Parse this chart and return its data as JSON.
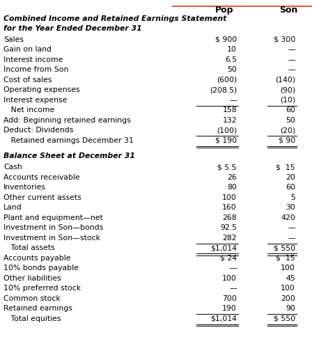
{
  "header_line_color": "#d2603a",
  "col_headers_pop": "Pop",
  "col_headers_son": "Son",
  "section1_title_line1": "Combined Income and Retained Earnings Statement",
  "section1_title_line2": "for the Year Ended December 31",
  "section2_title": "Balance Sheet at December 31",
  "rows": [
    {
      "label": "Sales",
      "pop": "$ 900",
      "son": "$ 300",
      "indent": false,
      "ul_pop": false,
      "ul_son": false,
      "dul_pop": false,
      "dul_son": false
    },
    {
      "label": "Gain on land",
      "pop": "10",
      "son": "—",
      "indent": false,
      "ul_pop": false,
      "ul_son": false,
      "dul_pop": false,
      "dul_son": false
    },
    {
      "label": "Interest income",
      "pop": "6.5",
      "son": "—",
      "indent": false,
      "ul_pop": false,
      "ul_son": false,
      "dul_pop": false,
      "dul_son": false
    },
    {
      "label": "Income from Son",
      "pop": "50",
      "son": "—",
      "indent": false,
      "ul_pop": false,
      "ul_son": false,
      "dul_pop": false,
      "dul_son": false
    },
    {
      "label": "Cost of sales",
      "pop": "(600)",
      "son": "(140)",
      "indent": false,
      "ul_pop": false,
      "ul_son": false,
      "dul_pop": false,
      "dul_son": false
    },
    {
      "label": "Operating expenses",
      "pop": "(208.5)",
      "son": "(90)",
      "indent": false,
      "ul_pop": false,
      "ul_son": false,
      "dul_pop": false,
      "dul_son": false
    },
    {
      "label": "Interest expense",
      "pop": "—",
      "son": "(10)",
      "indent": false,
      "ul_pop": true,
      "ul_son": true,
      "dul_pop": false,
      "dul_son": false
    },
    {
      "label": "   Net income",
      "pop": "158",
      "son": "60",
      "indent": true,
      "ul_pop": false,
      "ul_son": false,
      "dul_pop": false,
      "dul_son": false
    },
    {
      "label": "Add: Beginning retained earnings",
      "pop": "132",
      "son": "50",
      "indent": false,
      "ul_pop": false,
      "ul_son": false,
      "dul_pop": false,
      "dul_son": false
    },
    {
      "label": "Deduct: Dividends",
      "pop": "(100)",
      "son": "(20)",
      "indent": false,
      "ul_pop": true,
      "ul_son": true,
      "dul_pop": false,
      "dul_son": false
    },
    {
      "label": "   Retained earnings December 31",
      "pop": "$ 190",
      "son": "$ 90",
      "indent": true,
      "ul_pop": true,
      "ul_son": true,
      "dul_pop": true,
      "dul_son": true
    }
  ],
  "rows2": [
    {
      "label": "Cash",
      "pop": "$ 5.5",
      "son": "$  15",
      "indent": false,
      "ul_pop": false,
      "ul_son": false,
      "dul_pop": false,
      "dul_son": false
    },
    {
      "label": "Accounts receivable",
      "pop": "26",
      "son": "20",
      "indent": false,
      "ul_pop": false,
      "ul_son": false,
      "dul_pop": false,
      "dul_son": false
    },
    {
      "label": "Inventories",
      "pop": "80",
      "son": "60",
      "indent": false,
      "ul_pop": false,
      "ul_son": false,
      "dul_pop": false,
      "dul_son": false
    },
    {
      "label": "Other current assets",
      "pop": "100",
      "son": "5",
      "indent": false,
      "ul_pop": false,
      "ul_son": false,
      "dul_pop": false,
      "dul_son": false
    },
    {
      "label": "Land",
      "pop": "160",
      "son": "30",
      "indent": false,
      "ul_pop": false,
      "ul_son": false,
      "dul_pop": false,
      "dul_son": false
    },
    {
      "label": "Plant and equipment—net",
      "pop": "268",
      "son": "420",
      "indent": false,
      "ul_pop": false,
      "ul_son": false,
      "dul_pop": false,
      "dul_son": false
    },
    {
      "label": "Investment in Son—bonds",
      "pop": "92.5",
      "son": "—",
      "indent": false,
      "ul_pop": false,
      "ul_son": false,
      "dul_pop": false,
      "dul_son": false
    },
    {
      "label": "Investment in Son—stock",
      "pop": "282",
      "son": "—",
      "indent": false,
      "ul_pop": true,
      "ul_son": true,
      "dul_pop": false,
      "dul_son": false
    },
    {
      "label": "   Total assets",
      "pop": "$1,014",
      "son": "$ 550",
      "indent": true,
      "ul_pop": true,
      "ul_son": true,
      "dul_pop": true,
      "dul_son": true
    },
    {
      "label": "Accounts payable",
      "pop": "$ 24",
      "son": "$  15",
      "indent": false,
      "ul_pop": false,
      "ul_son": false,
      "dul_pop": false,
      "dul_son": false
    },
    {
      "label": "10% bonds payable",
      "pop": "—",
      "son": "100",
      "indent": false,
      "ul_pop": false,
      "ul_son": false,
      "dul_pop": false,
      "dul_son": false
    },
    {
      "label": "Other liabilities",
      "pop": "100",
      "son": "45",
      "indent": false,
      "ul_pop": false,
      "ul_son": false,
      "dul_pop": false,
      "dul_son": false
    },
    {
      "label": "10% preferred stock",
      "pop": "—",
      "son": "100",
      "indent": false,
      "ul_pop": false,
      "ul_son": false,
      "dul_pop": false,
      "dul_son": false
    },
    {
      "label": "Common stock",
      "pop": "700",
      "son": "200",
      "indent": false,
      "ul_pop": false,
      "ul_son": false,
      "dul_pop": false,
      "dul_son": false
    },
    {
      "label": "Retained earnings",
      "pop": "190",
      "son": "90",
      "indent": false,
      "ul_pop": true,
      "ul_son": true,
      "dul_pop": false,
      "dul_son": false
    },
    {
      "label": "   Total equities",
      "pop": "$1,014",
      "son": "$ 550",
      "indent": true,
      "ul_pop": true,
      "ul_son": true,
      "dul_pop": true,
      "dul_son": true
    }
  ],
  "bg_color": "#ffffff",
  "text_color": "#000000",
  "font_size": 7.8,
  "header_font_size": 9.0
}
